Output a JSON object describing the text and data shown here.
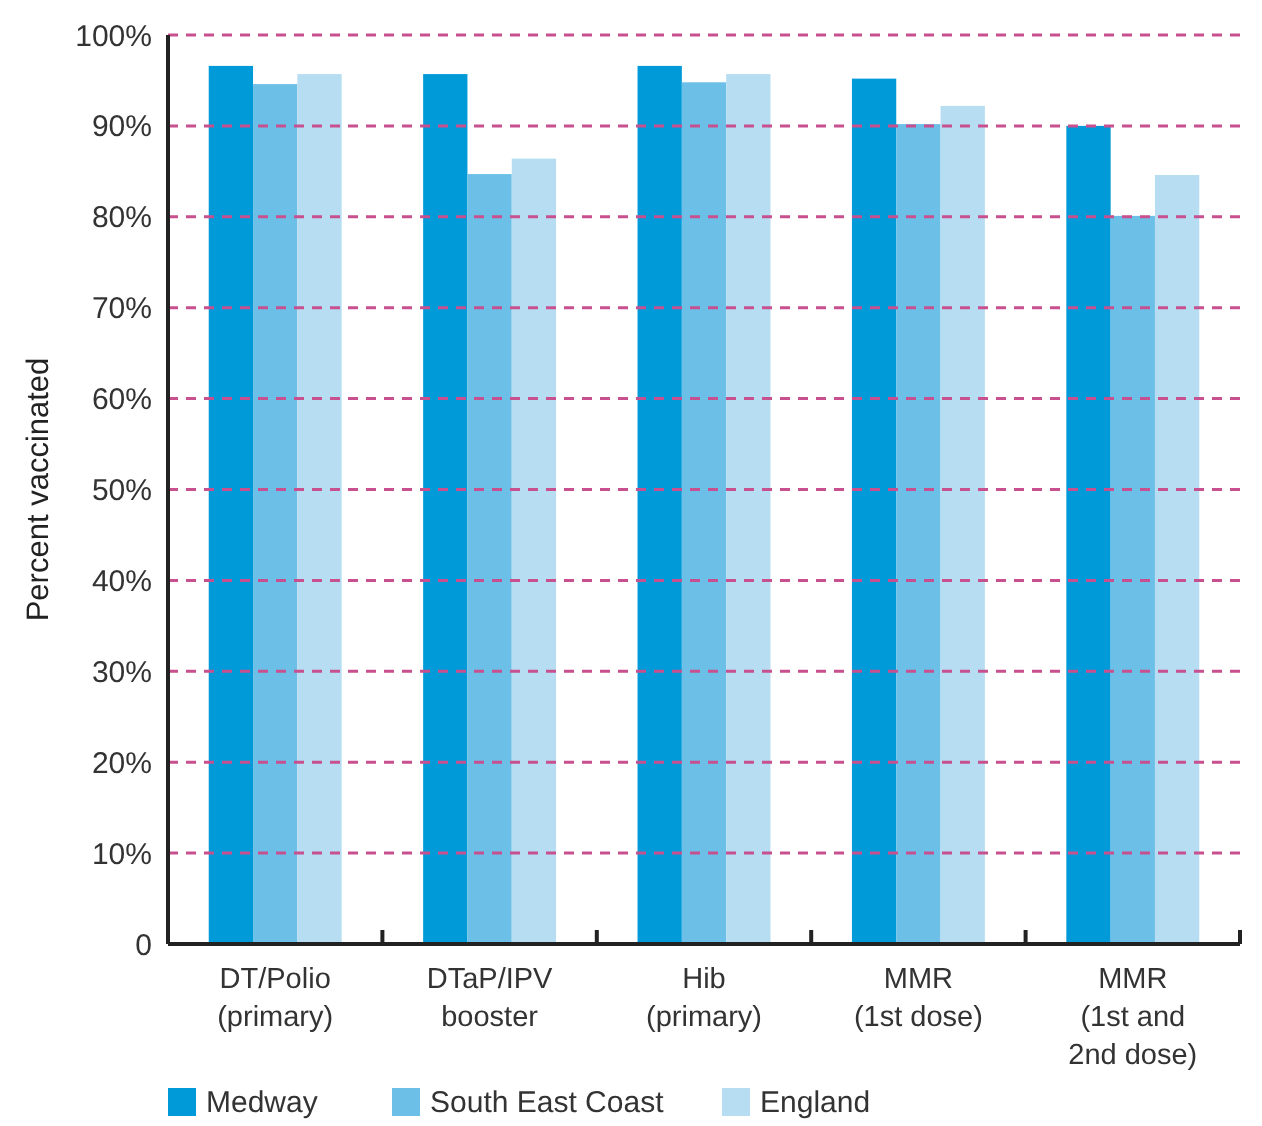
{
  "chart_data": {
    "type": "bar",
    "ylabel": "Percent vaccinated",
    "categories": [
      "DT/Polio\n(primary)",
      "DTaP/IPV\nbooster",
      "Hib\n(primary)",
      "MMR\n(1st dose)",
      "MMR\n(1st and\n2nd dose)"
    ],
    "series": [
      {
        "name": "Medway",
        "color": "#009ad9",
        "values": [
          96.6,
          95.7,
          96.6,
          95.2,
          90.0
        ]
      },
      {
        "name": "South East Coast",
        "color": "#6cc0e8",
        "values": [
          94.6,
          84.7,
          94.8,
          90.2,
          80.1
        ]
      },
      {
        "name": "England",
        "color": "#b7ddf2",
        "values": [
          95.7,
          86.4,
          95.7,
          92.2,
          84.6
        ]
      }
    ],
    "ylim": [
      0,
      100
    ],
    "yticks": [
      {
        "value": 0,
        "label": "0"
      },
      {
        "value": 10,
        "label": "10%"
      },
      {
        "value": 20,
        "label": "20%"
      },
      {
        "value": 30,
        "label": "30%"
      },
      {
        "value": 40,
        "label": "40%"
      },
      {
        "value": 50,
        "label": "50%"
      },
      {
        "value": 60,
        "label": "60%"
      },
      {
        "value": 70,
        "label": "70%"
      },
      {
        "value": 80,
        "label": "80%"
      },
      {
        "value": 90,
        "label": "90%"
      },
      {
        "value": 100,
        "label": "100%"
      }
    ],
    "grid": "y",
    "legend": "bottom"
  }
}
